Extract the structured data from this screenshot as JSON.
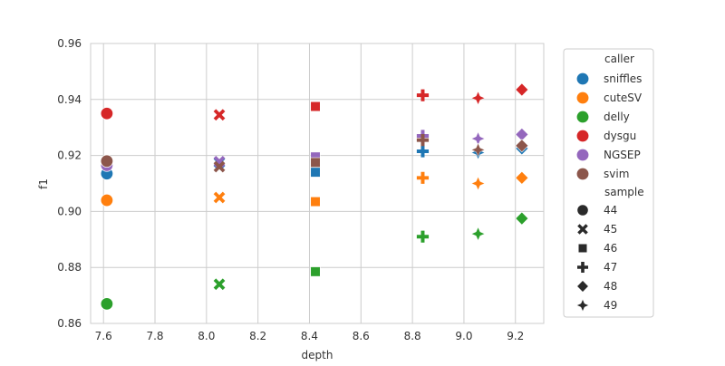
{
  "chart_data": {
    "type": "scatter",
    "xlabel": "depth",
    "ylabel": "f1",
    "xlim": [
      7.55,
      9.31
    ],
    "ylim": [
      0.86,
      0.96
    ],
    "xticks": [
      "7.6",
      "7.8",
      "8.0",
      "8.2",
      "8.4",
      "8.6",
      "8.8",
      "9.0",
      "9.2"
    ],
    "yticks": [
      "0.86",
      "0.88",
      "0.90",
      "0.92",
      "0.94",
      "0.96"
    ],
    "xtick_values": [
      7.6,
      7.8,
      8.0,
      8.2,
      8.4,
      8.6,
      8.8,
      9.0,
      9.2
    ],
    "ytick_values": [
      0.86,
      0.88,
      0.9,
      0.92,
      0.94,
      0.96
    ],
    "legend": {
      "caller_title": "caller",
      "sample_title": "sample",
      "placement": "right-outside"
    },
    "callers": [
      {
        "name": "sniffles",
        "color": "#1f77b4"
      },
      {
        "name": "cuteSV",
        "color": "#ff7f0e"
      },
      {
        "name": "delly",
        "color": "#2ca02c"
      },
      {
        "name": "dysgu",
        "color": "#d62728"
      },
      {
        "name": "NGSEP",
        "color": "#9467bd"
      },
      {
        "name": "svim",
        "color": "#8c564b"
      }
    ],
    "samples": [
      {
        "name": "44",
        "marker": "circle"
      },
      {
        "name": "45",
        "marker": "x"
      },
      {
        "name": "46",
        "marker": "square"
      },
      {
        "name": "47",
        "marker": "plus"
      },
      {
        "name": "48",
        "marker": "diamond"
      },
      {
        "name": "49",
        "marker": "star4"
      }
    ],
    "points": [
      {
        "caller": "sniffles",
        "sample": "44",
        "x": 7.613,
        "y": 0.9135
      },
      {
        "caller": "cuteSV",
        "sample": "44",
        "x": 7.613,
        "y": 0.904
      },
      {
        "caller": "delly",
        "sample": "44",
        "x": 7.613,
        "y": 0.867
      },
      {
        "caller": "dysgu",
        "sample": "44",
        "x": 7.613,
        "y": 0.935
      },
      {
        "caller": "NGSEP",
        "sample": "44",
        "x": 7.613,
        "y": 0.9165
      },
      {
        "caller": "svim",
        "sample": "44",
        "x": 7.613,
        "y": 0.918
      },
      {
        "caller": "sniffles",
        "sample": "45",
        "x": 8.05,
        "y": 0.9175
      },
      {
        "caller": "cuteSV",
        "sample": "45",
        "x": 8.05,
        "y": 0.905
      },
      {
        "caller": "delly",
        "sample": "45",
        "x": 8.05,
        "y": 0.874
      },
      {
        "caller": "dysgu",
        "sample": "45",
        "x": 8.05,
        "y": 0.9345
      },
      {
        "caller": "NGSEP",
        "sample": "45",
        "x": 8.05,
        "y": 0.9178
      },
      {
        "caller": "svim",
        "sample": "45",
        "x": 8.05,
        "y": 0.916
      },
      {
        "caller": "sniffles",
        "sample": "46",
        "x": 8.423,
        "y": 0.914
      },
      {
        "caller": "cuteSV",
        "sample": "46",
        "x": 8.423,
        "y": 0.9035
      },
      {
        "caller": "delly",
        "sample": "46",
        "x": 8.423,
        "y": 0.8785
      },
      {
        "caller": "dysgu",
        "sample": "46",
        "x": 8.423,
        "y": 0.9375
      },
      {
        "caller": "NGSEP",
        "sample": "46",
        "x": 8.423,
        "y": 0.9195
      },
      {
        "caller": "svim",
        "sample": "46",
        "x": 8.423,
        "y": 0.9175
      },
      {
        "caller": "sniffles",
        "sample": "47",
        "x": 8.84,
        "y": 0.9215
      },
      {
        "caller": "cuteSV",
        "sample": "47",
        "x": 8.84,
        "y": 0.912
      },
      {
        "caller": "delly",
        "sample": "47",
        "x": 8.84,
        "y": 0.891
      },
      {
        "caller": "dysgu",
        "sample": "47",
        "x": 8.84,
        "y": 0.9415
      },
      {
        "caller": "NGSEP",
        "sample": "47",
        "x": 8.84,
        "y": 0.927
      },
      {
        "caller": "svim",
        "sample": "47",
        "x": 8.84,
        "y": 0.9255
      },
      {
        "caller": "sniffles",
        "sample": "48",
        "x": 9.225,
        "y": 0.9225
      },
      {
        "caller": "cuteSV",
        "sample": "48",
        "x": 9.225,
        "y": 0.912
      },
      {
        "caller": "delly",
        "sample": "48",
        "x": 9.225,
        "y": 0.8975
      },
      {
        "caller": "dysgu",
        "sample": "48",
        "x": 9.225,
        "y": 0.9435
      },
      {
        "caller": "NGSEP",
        "sample": "48",
        "x": 9.225,
        "y": 0.9275
      },
      {
        "caller": "svim",
        "sample": "48",
        "x": 9.225,
        "y": 0.9235
      },
      {
        "caller": "sniffles",
        "sample": "49",
        "x": 9.055,
        "y": 0.921
      },
      {
        "caller": "cuteSV",
        "sample": "49",
        "x": 9.055,
        "y": 0.91
      },
      {
        "caller": "delly",
        "sample": "49",
        "x": 9.055,
        "y": 0.892
      },
      {
        "caller": "dysgu",
        "sample": "49",
        "x": 9.055,
        "y": 0.9405
      },
      {
        "caller": "NGSEP",
        "sample": "49",
        "x": 9.055,
        "y": 0.926
      },
      {
        "caller": "svim",
        "sample": "49",
        "x": 9.055,
        "y": 0.922
      }
    ]
  }
}
